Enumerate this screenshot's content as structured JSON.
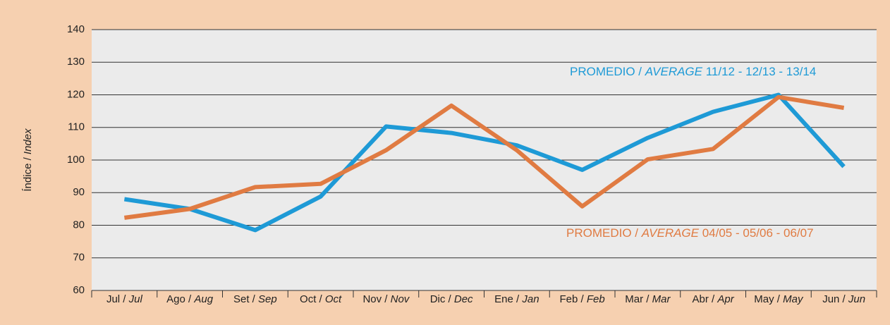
{
  "chart_data": {
    "type": "line",
    "y_label": "Índice / Index",
    "categories": [
      "Jul / Jul",
      "Ago / Aug",
      "Set / Sep",
      "Oct / Oct",
      "Nov / Nov",
      "Dic / Dec",
      "Ene / Jan",
      "Feb / Feb",
      "Mar / Mar",
      "Abr / Apr",
      "May / May",
      "Jun / Jun"
    ],
    "series": [
      {
        "name": "PROMEDIO / AVERAGE 11/12 - 12/13 - 13/14",
        "color": "#1e9ad6",
        "values": [
          88,
          85,
          78.5,
          88.8,
          110.3,
          108.3,
          104.5,
          97,
          106.8,
          114.8,
          120,
          98
        ]
      },
      {
        "name": "PROMEDIO / AVERAGE 04/05 - 05/06 - 06/07",
        "color": "#e07b42",
        "values": [
          82.3,
          85,
          91.7,
          92.7,
          103,
          116.7,
          103,
          85.8,
          100.2,
          103.4,
          119.3,
          116
        ]
      }
    ],
    "ylim": [
      60,
      140
    ],
    "yticks": [
      60,
      70,
      80,
      90,
      100,
      110,
      120,
      130,
      140
    ],
    "grid": true
  }
}
